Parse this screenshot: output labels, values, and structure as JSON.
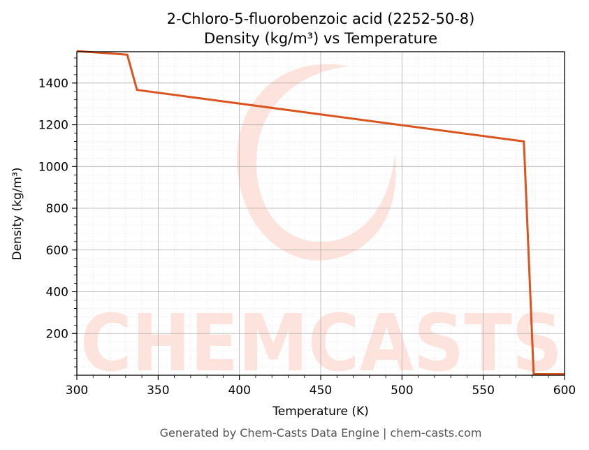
{
  "chart_data": {
    "type": "line",
    "title_line1": "2-Chloro-5-fluorobenzoic acid (2252-50-8)",
    "title_line2": "Density (kg/m³) vs Temperature",
    "xlabel": "Temperature (K)",
    "ylabel": "Density (kg/m³)",
    "xlim": [
      300,
      600
    ],
    "ylim": [
      0,
      1550
    ],
    "x_ticks": [
      300,
      350,
      400,
      450,
      500,
      550,
      600
    ],
    "y_ticks": [
      200,
      400,
      600,
      800,
      1000,
      1200,
      1400
    ],
    "grid": true,
    "series": [
      {
        "color": "#d9541e",
        "points": [
          [
            300,
            1553
          ],
          [
            331,
            1536
          ],
          [
            337,
            1367
          ],
          [
            575,
            1120
          ],
          [
            581,
            5
          ],
          [
            600,
            5
          ]
        ]
      }
    ]
  },
  "watermark": {
    "text": "CHEMCASTS",
    "color": "#fde3dc"
  },
  "footer": "Generated by Chem-Casts Data Engine | chem-casts.com"
}
